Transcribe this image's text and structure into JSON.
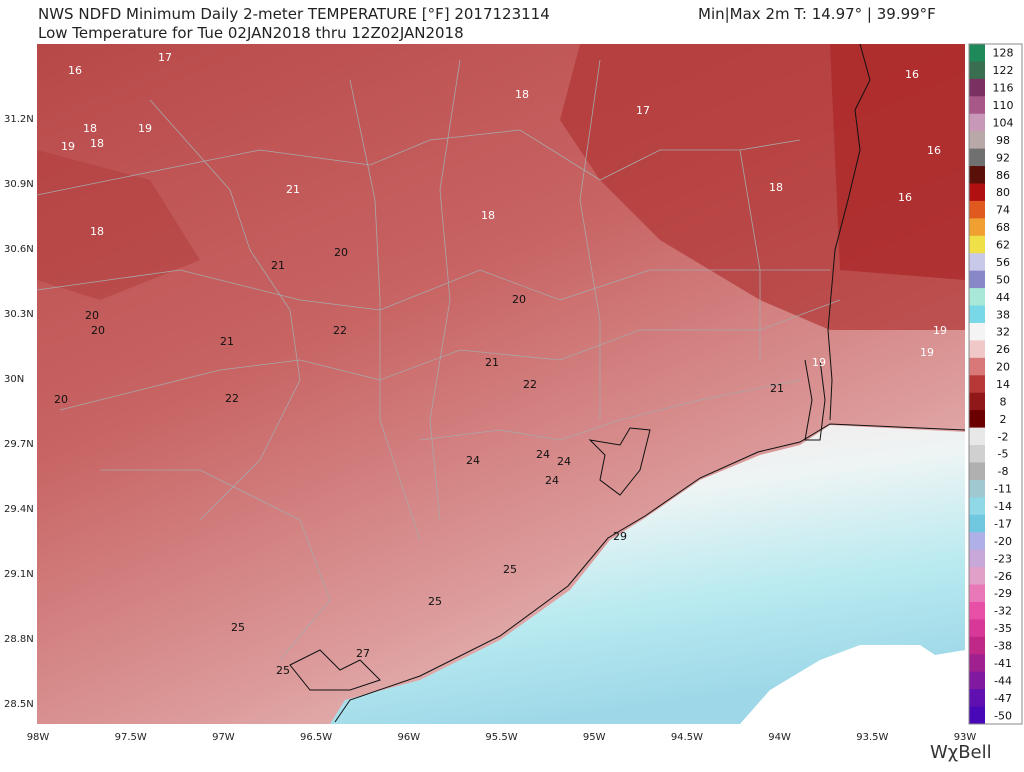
{
  "header": {
    "title": "NWS NDFD Minimum Daily 2-meter TEMPERATURE [°F]  2017123114",
    "minmax": "Min|Max 2m T:  14.97°  | 39.99°F",
    "subtitle": "Low Temperature for Tue 02JAN2018 thru 12Z02JAN2018"
  },
  "map": {
    "lat_labels": [
      "31.2N",
      "30.9N",
      "30.6N",
      "30.3N",
      "30N",
      "29.7N",
      "29.4N",
      "29.1N",
      "28.8N",
      "28.5N"
    ],
    "lon_labels": [
      "98W",
      "97.5W",
      "97W",
      "96.5W",
      "96W",
      "95.5W",
      "95W",
      "94.5W",
      "94W",
      "93.5W",
      "93W"
    ],
    "station_values": [
      16,
      17,
      18,
      17,
      16,
      18,
      19,
      19,
      18,
      16,
      21,
      18,
      16,
      18,
      18,
      20,
      21,
      20,
      20,
      20,
      22,
      21,
      19,
      19,
      21,
      19,
      22,
      21,
      20,
      22,
      24,
      24,
      24,
      24,
      29,
      25,
      25,
      25,
      27,
      25
    ]
  },
  "colorbar": {
    "labels": [
      128,
      122,
      116,
      110,
      104,
      98,
      92,
      86,
      80,
      74,
      68,
      62,
      56,
      50,
      44,
      38,
      32,
      26,
      20,
      14,
      8,
      2,
      -2,
      -5,
      -8,
      -11,
      -14,
      -17,
      -20,
      -23,
      -26,
      -29,
      -32,
      -35,
      -38,
      -41,
      -44,
      -47,
      -50
    ],
    "colors": [
      "#1e8a5a",
      "#3a6e50",
      "#7a3060",
      "#a85888",
      "#c898b8",
      "#b8a8a8",
      "#707070",
      "#5a1008",
      "#b01010",
      "#e05a20",
      "#f0a030",
      "#f0e048",
      "#c8c8e8",
      "#8888c8",
      "#a8e8d8",
      "#78d8e8",
      "#f4f4f4",
      "#f0c8c8",
      "#d87878",
      "#b83838",
      "#901818",
      "#6a0000",
      "#e8e8e8",
      "#d0d0d0",
      "#b0b0b0",
      "#a0c8d0",
      "#90d8e8",
      "#70c8e0",
      "#b0b0e8",
      "#c8a8d8",
      "#e0a0c8",
      "#e878b8",
      "#e850a8",
      "#d83898",
      "#c02888",
      "#a02090",
      "#8018a0",
      "#6010b0",
      "#4808b8"
    ]
  },
  "logo": "WχBell"
}
